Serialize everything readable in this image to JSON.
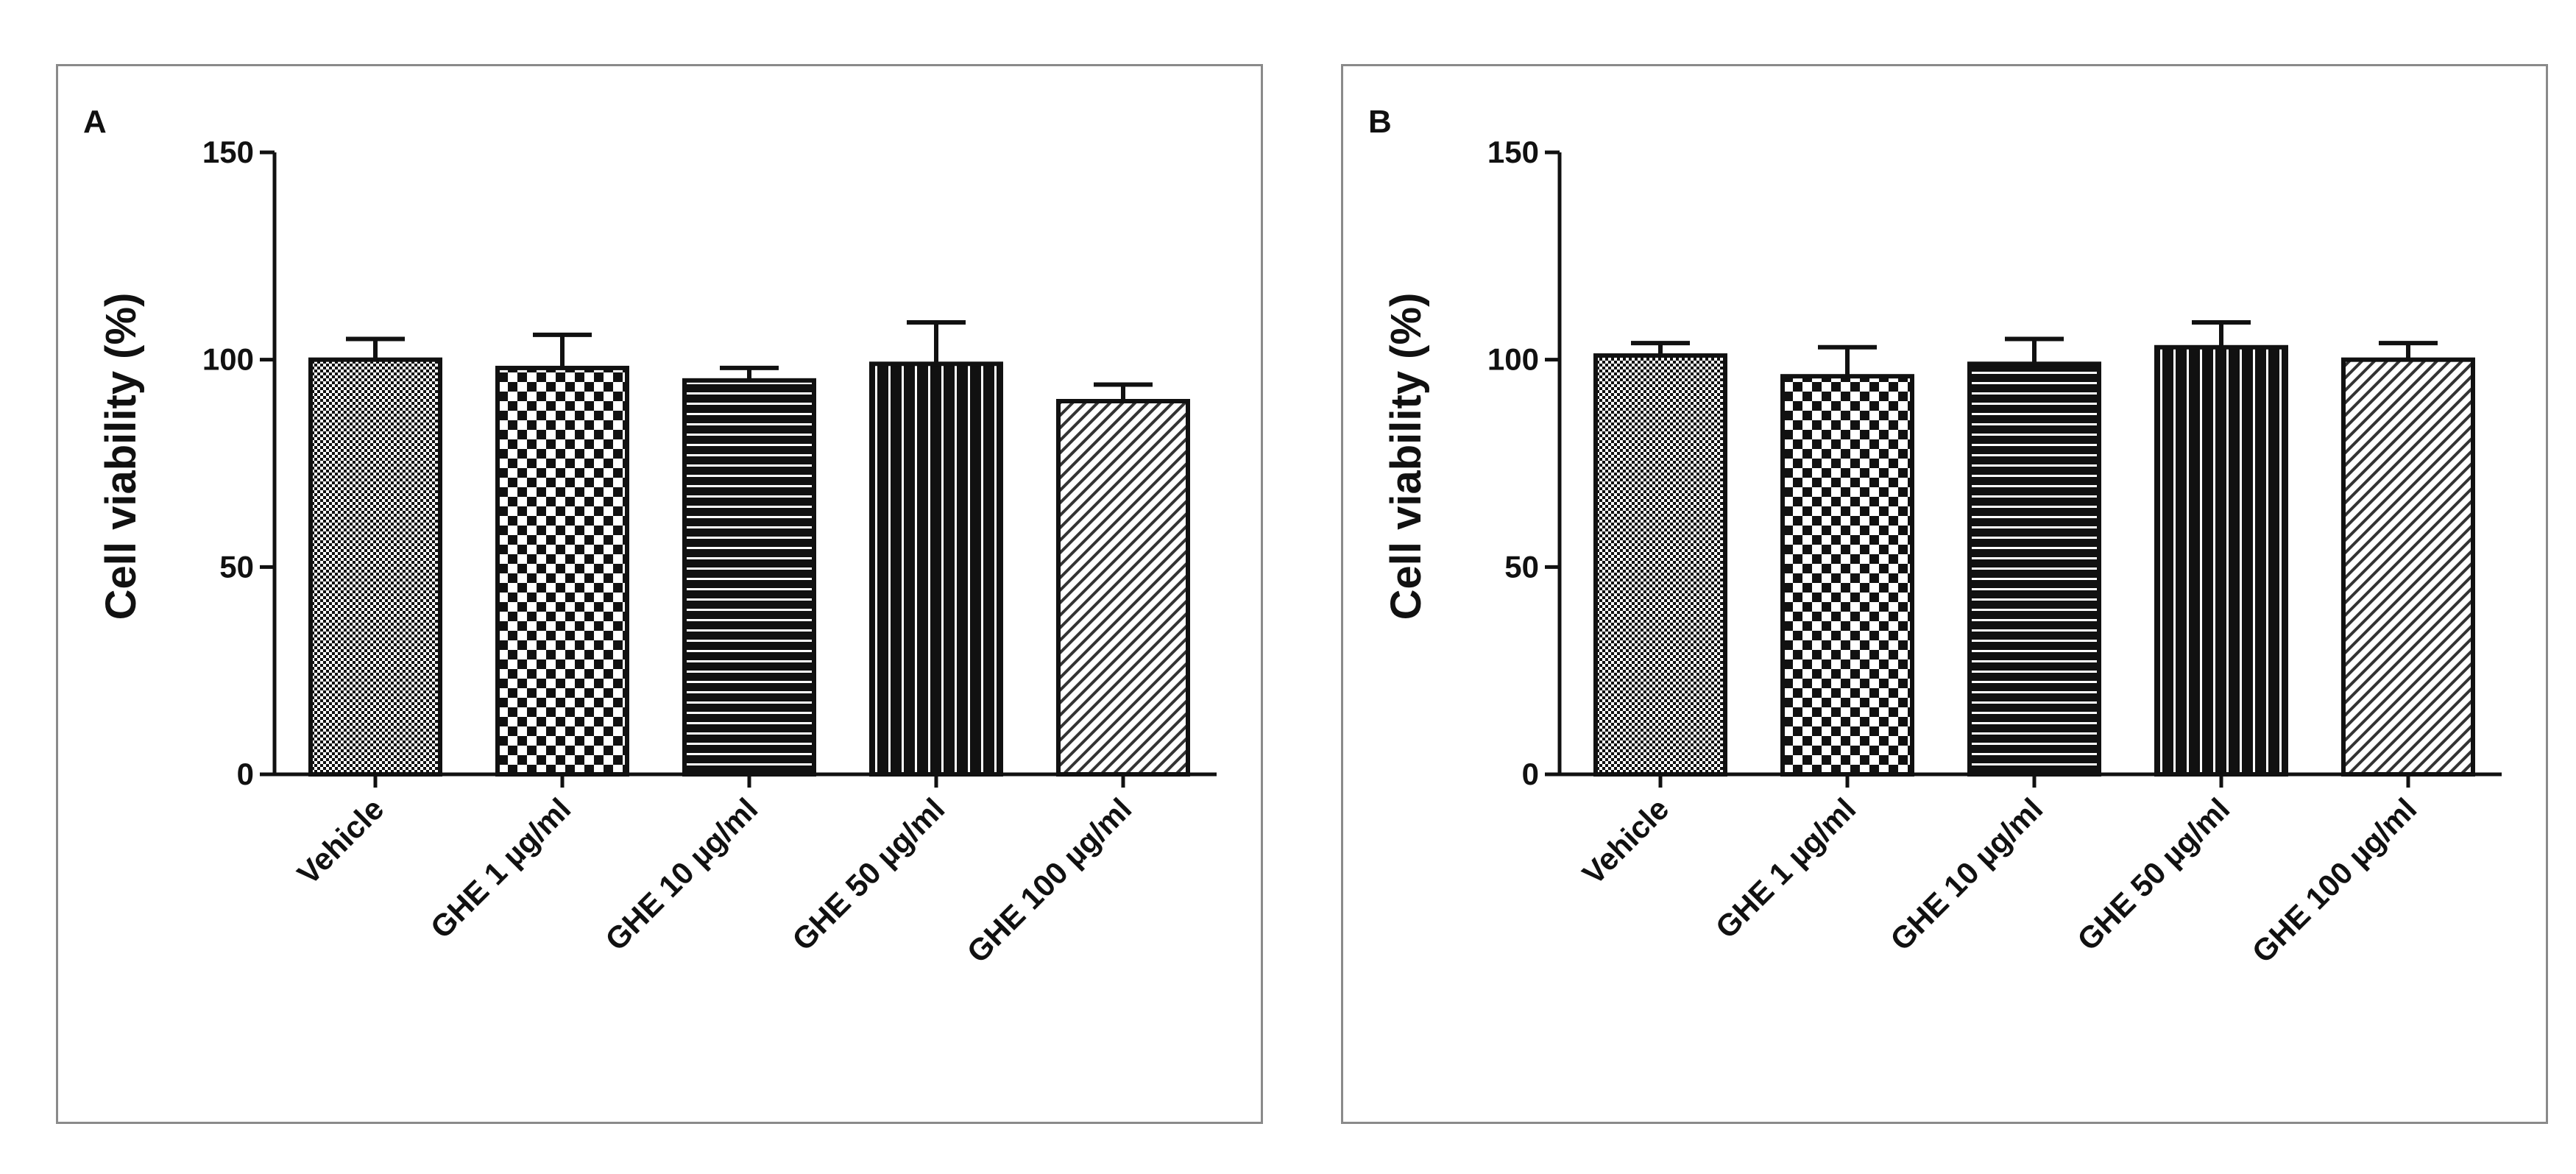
{
  "colors": {
    "ink": "#111111",
    "frame": "#8a8a8a",
    "background": "#ffffff"
  },
  "chart_data": [
    {
      "type": "bar",
      "panel_label": "A",
      "title": "",
      "xlabel": "",
      "ylabel": "Cell viability (%)",
      "ylim": [
        0,
        150
      ],
      "yticks": [
        "0",
        "50",
        "100",
        "150"
      ],
      "categories": [
        "Vehicle",
        "GHE 1 µg/ml",
        "GHE 10 µg/ml",
        "GHE 50 µg/ml",
        "GHE 100 µg/ml"
      ],
      "values": [
        100,
        98,
        95,
        99,
        90
      ],
      "errors": [
        5,
        8,
        3,
        10,
        4
      ],
      "patterns": [
        "fine-check",
        "check",
        "horizontal",
        "vertical",
        "diagonal"
      ]
    },
    {
      "type": "bar",
      "panel_label": "B",
      "title": "",
      "xlabel": "",
      "ylabel": "Cell viability (%)",
      "ylim": [
        0,
        150
      ],
      "yticks": [
        "0",
        "50",
        "100",
        "150"
      ],
      "categories": [
        "Vehicle",
        "GHE 1 µg/ml",
        "GHE 10 µg/ml",
        "GHE 50 µg/ml",
        "GHE 100 µg/ml"
      ],
      "values": [
        101,
        96,
        99,
        103,
        100
      ],
      "errors": [
        3,
        7,
        6,
        6,
        4
      ],
      "patterns": [
        "fine-check",
        "check",
        "horizontal",
        "vertical",
        "diagonal"
      ]
    }
  ]
}
